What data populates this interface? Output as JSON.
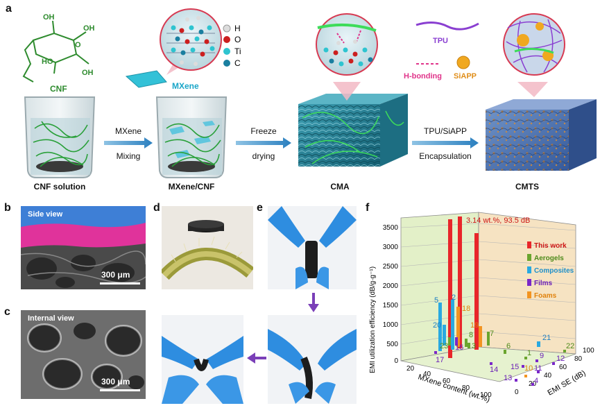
{
  "panels": {
    "a": "a",
    "b": "b",
    "c": "c",
    "d": "d",
    "e": "e",
    "f": "f"
  },
  "top": {
    "cnf_label": "CNF",
    "mxene_label": "MXene",
    "legend": [
      {
        "symbol": "H",
        "color": "#dcdcdc"
      },
      {
        "symbol": "O",
        "color": "#cc1f1f"
      },
      {
        "symbol": "Ti",
        "color": "#2ec4d0"
      },
      {
        "symbol": "C",
        "color": "#1a7fa0"
      }
    ],
    "mol": {
      "oh1": "OH",
      "oh2": "OH",
      "ho1": "HO",
      "oh3": "OH",
      "o_ring": "O"
    },
    "tpu_label": "TPU",
    "hbond_label": "H-bonding",
    "siapp_label": "SiAPP",
    "steps": {
      "s1_top": "MXene",
      "s1_bottom": "Mixing",
      "s2_top": "Freeze",
      "s2_bottom": "drying",
      "s3_top": "TPU/SiAPP",
      "s3_bottom": "Encapsulation"
    },
    "stages": [
      "CNF solution",
      "MXene/CNF",
      "CMA",
      "CMTS"
    ]
  },
  "sem": {
    "b_label": "Side view",
    "c_label": "Internal view",
    "scale_b": "300 μm",
    "scale_c": "300 μm"
  },
  "chart_data": {
    "type": "3d-bar",
    "ylabel": "EMI utilization efficiency (dB/g·g⁻¹)",
    "xlabel": "MXene content (wt.%)",
    "zlabel": "EMI SE (dB)",
    "yticks": [
      0,
      500,
      1000,
      1500,
      2000,
      2500,
      3000,
      3500
    ],
    "xticks": [
      0,
      20,
      40,
      60,
      80,
      100
    ],
    "zticks": [
      0,
      20,
      40,
      60,
      80,
      100
    ],
    "annotation": "3.14 wt.%, 93.5 dB",
    "legend": [
      {
        "name": "This work",
        "color": "#e8262a"
      },
      {
        "name": "Aerogels",
        "color": "#6aa52e"
      },
      {
        "name": "Composites",
        "color": "#29a9e1"
      },
      {
        "name": "Films",
        "color": "#7a27c9"
      },
      {
        "name": "Foams",
        "color": "#f29421"
      }
    ],
    "point_labels": [
      "5",
      "2",
      "18",
      "20",
      "19",
      "7",
      "23",
      "8",
      "3",
      "16",
      "6",
      "21",
      "1",
      "22",
      "9",
      "12",
      "14",
      "17",
      "15",
      "10",
      "11",
      "13",
      "4"
    ]
  }
}
